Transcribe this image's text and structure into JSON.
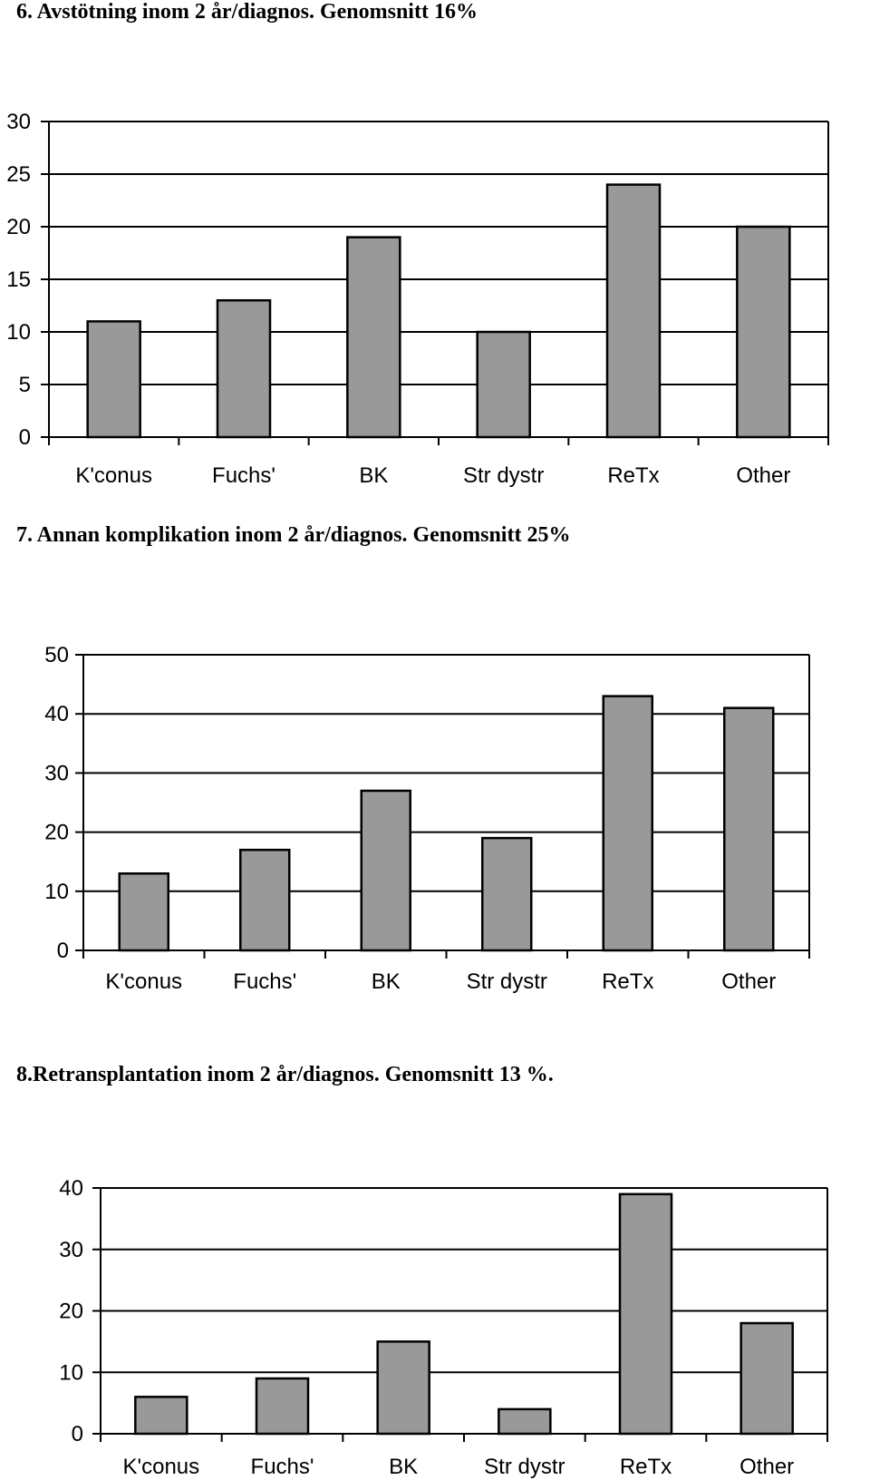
{
  "chart_data": [
    {
      "type": "bar",
      "title": "6. Avstötning inom 2 år/diagnos. Genomsnitt 16%",
      "categories": [
        "K'conus",
        "Fuchs'",
        "BK",
        "Str dystr",
        "ReTx",
        "Other"
      ],
      "values": [
        11,
        13,
        19,
        10,
        24,
        20
      ],
      "ylim": [
        0,
        30
      ],
      "yticks": [
        0,
        5,
        10,
        15,
        20,
        25,
        30
      ],
      "grid": true,
      "bar_color": "#999999",
      "xlabel": "",
      "ylabel": ""
    },
    {
      "type": "bar",
      "title": "7. Annan komplikation inom 2 år/diagnos. Genomsnitt 25%",
      "categories": [
        "K'conus",
        "Fuchs'",
        "BK",
        "Str dystr",
        "ReTx",
        "Other"
      ],
      "values": [
        13,
        17,
        27,
        19,
        43,
        41
      ],
      "ylim": [
        0,
        50
      ],
      "yticks": [
        0,
        10,
        20,
        30,
        40,
        50
      ],
      "grid": true,
      "bar_color": "#999999",
      "xlabel": "",
      "ylabel": ""
    },
    {
      "type": "bar",
      "title": "8.Retransplantation inom 2 år/diagnos. Genomsnitt 13 %.",
      "categories": [
        "K'conus",
        "Fuchs'",
        "BK",
        "Str dystr",
        "ReTx",
        "Other"
      ],
      "values": [
        6,
        9,
        15,
        4,
        39,
        18
      ],
      "ylim": [
        0,
        40
      ],
      "yticks": [
        0,
        10,
        20,
        30,
        40
      ],
      "grid": true,
      "bar_color": "#999999",
      "xlabel": "",
      "ylabel": ""
    }
  ]
}
